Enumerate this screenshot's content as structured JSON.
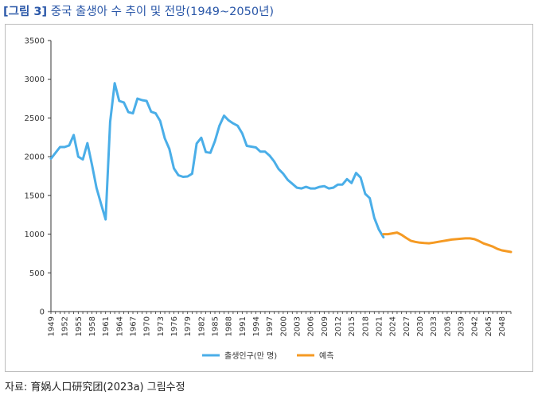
{
  "figure": {
    "tag": "[그림 3]",
    "title": "중국 출생아 수 추이 및 전망(1949~2050년)",
    "source": "자료: 育娲人口研究团(2023a) 그림수정"
  },
  "colors": {
    "actual": "#4aaee8",
    "forecast": "#f59a23",
    "axis": "#333333",
    "frame": "#bdbdbd",
    "title": "#2a57a8"
  },
  "chart_data": {
    "type": "line",
    "title": "",
    "xlabel": "",
    "ylabel": "",
    "ylim": [
      0,
      3500
    ],
    "yticks": [
      0,
      500,
      1000,
      1500,
      2000,
      2500,
      3000,
      3500
    ],
    "xlim": [
      1949,
      2050
    ],
    "xticks": [
      1949,
      1952,
      1955,
      1958,
      1961,
      1964,
      1967,
      1970,
      1973,
      1976,
      1979,
      1982,
      1985,
      1988,
      1991,
      1994,
      1997,
      2000,
      2003,
      2006,
      2009,
      2012,
      2015,
      2018,
      2021,
      2024,
      2027,
      2030,
      2033,
      2036,
      2039,
      2042,
      2045,
      2048
    ],
    "grid": false,
    "legend_position": "bottom",
    "series": [
      {
        "name": "출생인구(만 명)",
        "color": "#4aaee8",
        "x": [
          1949,
          1950,
          1951,
          1952,
          1953,
          1954,
          1955,
          1956,
          1957,
          1958,
          1959,
          1960,
          1961,
          1962,
          1963,
          1964,
          1965,
          1966,
          1967,
          1968,
          1969,
          1970,
          1971,
          1972,
          1973,
          1974,
          1975,
          1976,
          1977,
          1978,
          1979,
          1980,
          1981,
          1982,
          1983,
          1984,
          1985,
          1986,
          1987,
          1988,
          1989,
          1990,
          1991,
          1992,
          1993,
          1994,
          1995,
          1996,
          1997,
          1998,
          1999,
          2000,
          2001,
          2002,
          2003,
          2004,
          2005,
          2006,
          2007,
          2008,
          2009,
          2010,
          2011,
          2012,
          2013,
          2014,
          2015,
          2016,
          2017,
          2018,
          2019,
          2020,
          2021,
          2022
        ],
        "values": [
          1975,
          2050,
          2125,
          2125,
          2145,
          2280,
          2000,
          1965,
          2175,
          1900,
          1600,
          1390,
          1190,
          2450,
          2950,
          2720,
          2700,
          2575,
          2560,
          2750,
          2730,
          2720,
          2580,
          2560,
          2460,
          2235,
          2100,
          1850,
          1760,
          1740,
          1745,
          1780,
          2170,
          2245,
          2060,
          2050,
          2200,
          2400,
          2530,
          2470,
          2430,
          2400,
          2300,
          2140,
          2130,
          2120,
          2065,
          2065,
          2015,
          1940,
          1840,
          1780,
          1700,
          1650,
          1600,
          1590,
          1610,
          1590,
          1590,
          1610,
          1620,
          1590,
          1600,
          1640,
          1640,
          1710,
          1660,
          1790,
          1730,
          1520,
          1465,
          1210,
          1060,
          960
        ]
      },
      {
        "name": "예측",
        "color": "#f59a23",
        "x": [
          2022,
          2023,
          2024,
          2025,
          2026,
          2027,
          2028,
          2029,
          2030,
          2031,
          2032,
          2033,
          2034,
          2035,
          2036,
          2037,
          2038,
          2039,
          2040,
          2041,
          2042,
          2043,
          2044,
          2045,
          2046,
          2047,
          2048,
          2049,
          2050
        ],
        "values": [
          1000,
          1000,
          1010,
          1020,
          990,
          950,
          915,
          900,
          890,
          885,
          882,
          890,
          900,
          910,
          920,
          930,
          935,
          940,
          945,
          945,
          935,
          910,
          880,
          860,
          840,
          810,
          790,
          780,
          770
        ]
      }
    ]
  }
}
